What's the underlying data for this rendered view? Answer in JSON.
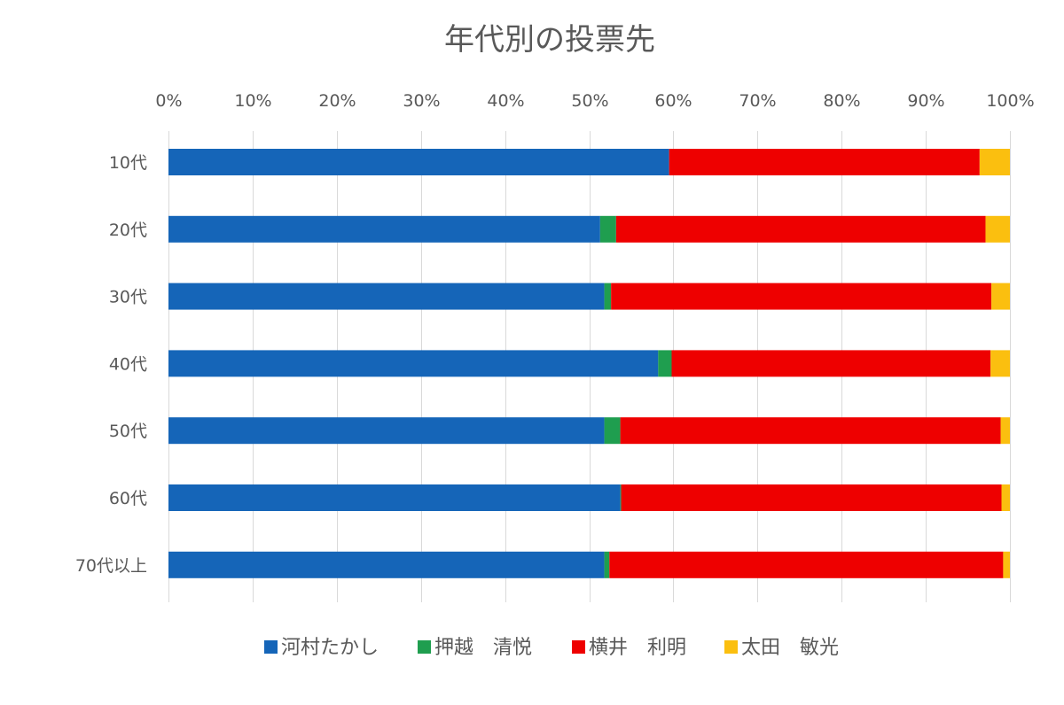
{
  "chart_data": {
    "type": "bar",
    "orientation": "horizontal",
    "stacked": true,
    "percent_stacked": true,
    "title": "年代別の投票先",
    "x_axis": {
      "position": "top",
      "range": [
        0,
        100
      ],
      "ticks": [
        "0%",
        "10%",
        "20%",
        "30%",
        "40%",
        "50%",
        "60%",
        "70%",
        "80%",
        "90%",
        "100%"
      ],
      "grid": true
    },
    "categories": [
      "10代",
      "20代",
      "30代",
      "40代",
      "50代",
      "60代",
      "70代以上"
    ],
    "series": [
      {
        "name": "河村たかし",
        "color": "#1565b8",
        "values": [
          59.5,
          51.3,
          51.8,
          58.2,
          51.8,
          53.7,
          51.8
        ]
      },
      {
        "name": "押越　清悦",
        "color": "#1f9e4f",
        "values": [
          0,
          1.9,
          0.8,
          1.6,
          1.9,
          0.1,
          0.6
        ]
      },
      {
        "name": "横井　利明",
        "color": "#ee0000",
        "values": [
          36.9,
          43.9,
          45.2,
          37.9,
          45.2,
          45.2,
          46.8
        ]
      },
      {
        "name": "太田　敏光",
        "color": "#fbbf0f",
        "values": [
          3.6,
          2.9,
          2.2,
          2.3,
          1.1,
          1.0,
          0.8
        ]
      }
    ],
    "legend": {
      "position": "bottom"
    }
  }
}
